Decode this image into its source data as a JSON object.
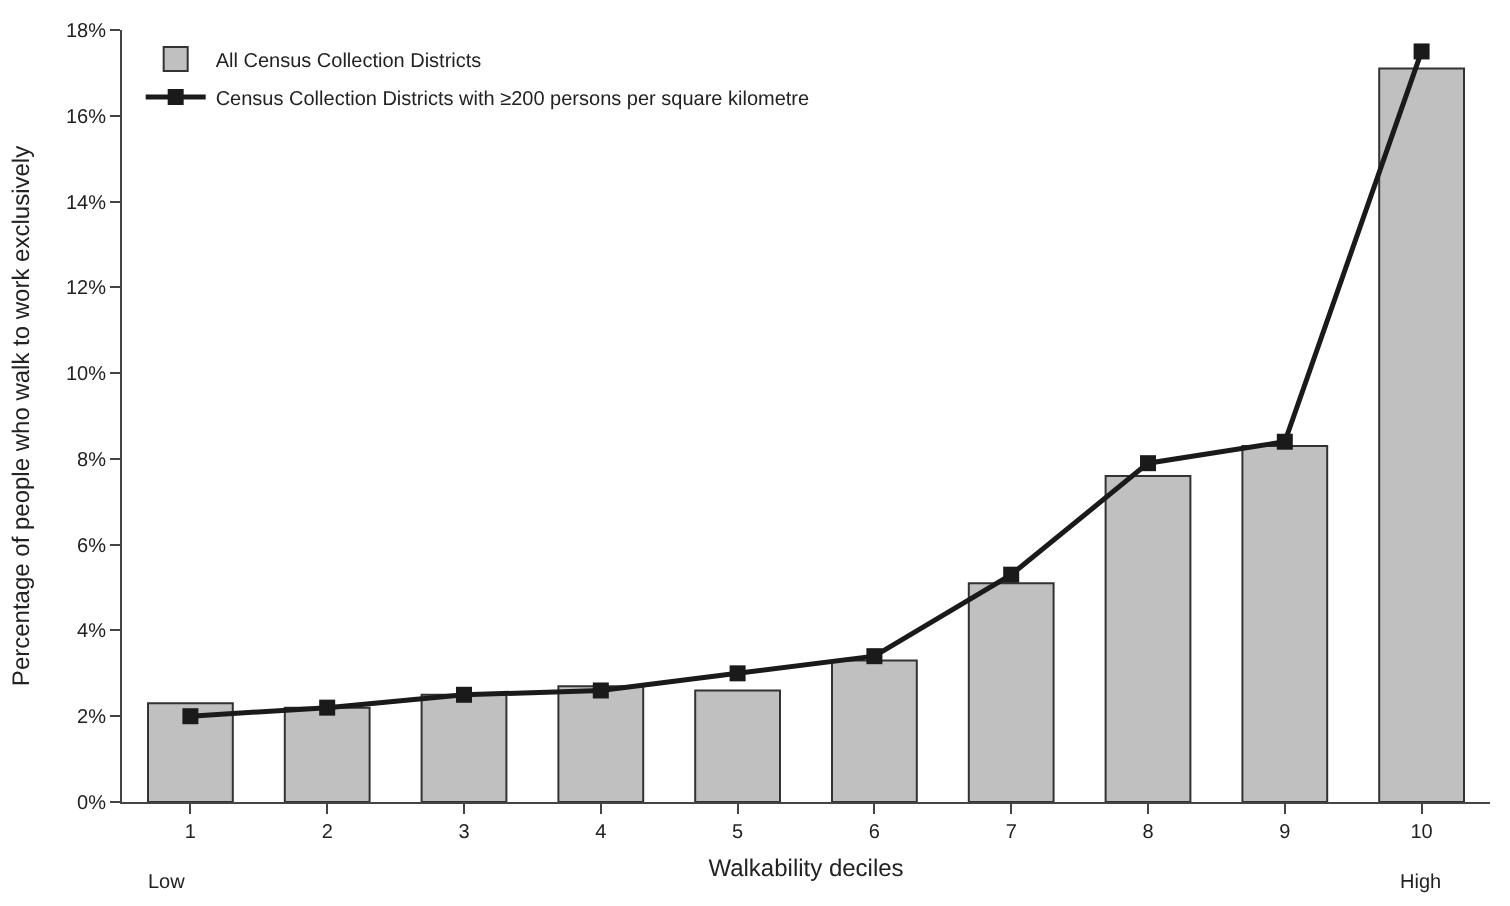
{
  "chart_data": {
    "type": "bar",
    "xlabel": "Walkability deciles",
    "ylabel": "Percentage of people who walk to work exclusively",
    "categories": [
      "1",
      "2",
      "3",
      "4",
      "5",
      "6",
      "7",
      "8",
      "9",
      "10"
    ],
    "series": [
      {
        "name": "All Census Collection Districts",
        "color": "#c0c0c0",
        "values": [
          2.3,
          2.2,
          2.5,
          2.7,
          2.6,
          3.3,
          5.1,
          7.6,
          8.3,
          17.1
        ]
      },
      {
        "name": "Census Collection Districts with ≥200 persons per square kilometre",
        "type": "line",
        "color": "#1a1a1a",
        "values": [
          2.0,
          2.2,
          2.5,
          2.6,
          3.0,
          3.4,
          5.3,
          7.9,
          8.4,
          17.5
        ]
      }
    ],
    "ylim": [
      0,
      18
    ],
    "yticks": [
      {
        "value": 0,
        "label": "0%"
      },
      {
        "value": 2,
        "label": "2%"
      },
      {
        "value": 4,
        "label": "4%"
      },
      {
        "value": 6,
        "label": "6%"
      },
      {
        "value": 8,
        "label": "8%"
      },
      {
        "value": 10,
        "label": "10%"
      },
      {
        "value": 12,
        "label": "12%"
      },
      {
        "value": 14,
        "label": "14%"
      },
      {
        "value": 16,
        "label": "16%"
      },
      {
        "value": 18,
        "label": "18%"
      }
    ],
    "annotations": [
      "Low",
      "High"
    ],
    "legend": "top left",
    "marker": "square",
    "line_style": "solid"
  }
}
